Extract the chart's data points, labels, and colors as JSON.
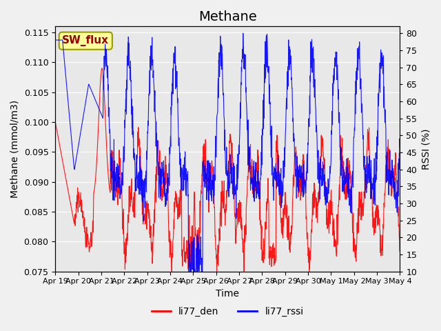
{
  "title": "Methane",
  "xlabel": "Time",
  "ylabel_left": "Methane (mmol/m3)",
  "ylabel_right": "RSSI (%)",
  "ylim_left": [
    0.075,
    0.116
  ],
  "ylim_right": [
    10,
    82
  ],
  "yticks_left": [
    0.075,
    0.08,
    0.085,
    0.09,
    0.095,
    0.1,
    0.105,
    0.11,
    0.115
  ],
  "yticks_right": [
    10,
    15,
    20,
    25,
    30,
    35,
    40,
    45,
    50,
    55,
    60,
    65,
    70,
    75,
    80
  ],
  "xtick_labels": [
    "Apr 19",
    "Apr 20",
    "Apr 21",
    "Apr 22",
    "Apr 23",
    "Apr 24",
    "Apr 25",
    "Apr 26",
    "Apr 27",
    "Apr 28",
    "Apr 29",
    "Apr 30",
    "May 1",
    "May 2",
    "May 3",
    "May 4"
  ],
  "color_red": "#ff0000",
  "color_blue": "#0000ff",
  "legend_label_red": "li77_den",
  "legend_label_blue": "li77_rssi",
  "annotation_text": "SW_flux",
  "annotation_bg": "#ffff99",
  "annotation_border": "#999900",
  "annotation_text_color": "#990000",
  "background_color": "#e8e8e8",
  "grid_color": "#ffffff",
  "title_fontsize": 14,
  "axis_fontsize": 10,
  "tick_fontsize": 9
}
